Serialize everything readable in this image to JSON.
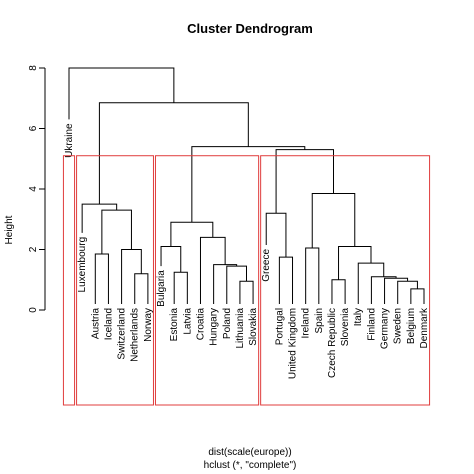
{
  "chart_data": {
    "type": "dendrogram",
    "title": "Cluster Dendrogram",
    "ylabel": "Height",
    "xlabel_lines": [
      "dist(scale(europe))",
      "hclust (*, \"complete\")"
    ],
    "yticks": [
      0,
      2,
      4,
      6,
      8
    ],
    "ylim": [
      0,
      8
    ],
    "leaves": [
      "Ukraine",
      "Luxembourg",
      "Austria",
      "Iceland",
      "Switzerland",
      "Netherlands",
      "Norway",
      "Bulgaria",
      "Estonia",
      "Latvia",
      "Croatia",
      "Hungary",
      "Poland",
      "Lithuania",
      "Slovakia",
      "Greece",
      "Portugal",
      "United Kingdom",
      "Ireland",
      "Spain",
      "Czech Republic",
      "Slovenia",
      "Italy",
      "Finland",
      "Germany",
      "Sweden",
      "Belgium",
      "Denmark"
    ],
    "merges": [
      {
        "a": "Belgium",
        "b": "Denmark",
        "height": 0.7
      },
      {
        "a": "Sweden",
        "b": "m1",
        "height": 0.95
      },
      {
        "a": "Germany",
        "b": "m2",
        "height": 1.05
      },
      {
        "a": "Finland",
        "b": "m3",
        "height": 1.1
      },
      {
        "a": "Poland",
        "b": "Lithuania",
        "height": 0.6
      },
      {
        "a": "Hungary",
        "b": "Hungary",
        "height": 0.0
      },
      {
        "a": "Czech Republic",
        "b": "Slovenia",
        "height": 1.0
      },
      {
        "a": "Lithuania",
        "b": "Slovakia",
        "height": 0.95
      },
      {
        "a": "Netherlands",
        "b": "Norway",
        "height": 1.2
      },
      {
        "a": "Estonia",
        "b": "Latvia",
        "height": 1.25
      },
      {
        "a": "Italy",
        "b": "m4",
        "height": 1.55
      },
      {
        "a": "Ireland",
        "b": "Spain",
        "height": 2.05
      },
      {
        "a": "Portugal",
        "b": "United Kingdom",
        "height": 1.75
      },
      {
        "a": "Austria",
        "b": "Iceland",
        "height": 1.85
      },
      {
        "a": "Switzerland",
        "b": "m9",
        "height": 2.0
      },
      {
        "a": "m7",
        "b": "m11",
        "height": 2.1
      },
      {
        "a": "Bulgaria",
        "b": "m10",
        "height": 2.1
      },
      {
        "a": "Croatia",
        "b": "Hungary-group",
        "height": 2.4
      },
      {
        "a": "Greece",
        "b": "m13",
        "height": 3.2
      },
      {
        "a": "m12",
        "b": "m16",
        "height": 3.85
      },
      {
        "a": "m14",
        "b": "m15",
        "height": 3.4
      },
      {
        "a": "m17",
        "b": "m18",
        "height": 2.9
      },
      {
        "a": "Luxembourg",
        "b": "m21",
        "height": 3.5
      },
      {
        "a": "m19",
        "b": "m20",
        "height": 5.3
      },
      {
        "a": "m22",
        "b": "m24",
        "height": 5.4
      },
      {
        "a": "m23",
        "b": "m25",
        "height": 6.85
      },
      {
        "a": "Ukraine",
        "b": "m26",
        "height": 8.0
      }
    ],
    "cluster_boxes": 4,
    "box_color": "#e03c3c"
  }
}
